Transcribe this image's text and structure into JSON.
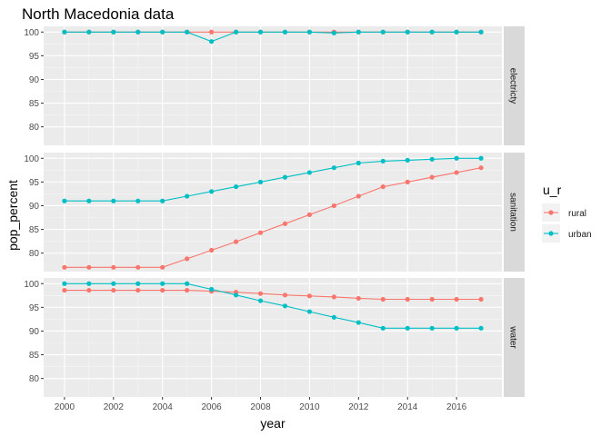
{
  "chart_data": {
    "type": "line",
    "title": "North Macedonia data",
    "xlabel": "year",
    "ylabel": "pop_percent",
    "facet_labels": [
      "electricty",
      "sanitation",
      "water"
    ],
    "x_ticks": [
      2000,
      2002,
      2004,
      2006,
      2008,
      2010,
      2012,
      2014,
      2016
    ],
    "y_ticks": [
      80,
      85,
      90,
      95,
      100
    ],
    "xlim": [
      1999.15,
      2017.85
    ],
    "ylim": [
      76.1,
      101.2
    ],
    "grid": true,
    "legend_title": "u_r",
    "legend_position": "right",
    "x": [
      2000,
      2001,
      2002,
      2003,
      2004,
      2005,
      2006,
      2007,
      2008,
      2009,
      2010,
      2011,
      2012,
      2013,
      2014,
      2015,
      2016,
      2017
    ],
    "series": [
      {
        "name": "rural",
        "color": "#F8766D"
      },
      {
        "name": "urban",
        "color": "#00BFC4"
      }
    ],
    "panels": [
      {
        "facet": "electricty",
        "rural": [
          100,
          100,
          100,
          100,
          100,
          100,
          100,
          100,
          100,
          100,
          100,
          100,
          100,
          100,
          100,
          100,
          100,
          100
        ],
        "urban": [
          100,
          100,
          100,
          100,
          100,
          100,
          98,
          100,
          100,
          100,
          100,
          99.8,
          100,
          100,
          100,
          100,
          100,
          100
        ]
      },
      {
        "facet": "sanitation",
        "rural": [
          77,
          77,
          77,
          77,
          77,
          78.8,
          80.6,
          82.4,
          84.3,
          86.2,
          88.1,
          90,
          92,
          94,
          95,
          96,
          97,
          98
        ],
        "urban": [
          91,
          91,
          91,
          91,
          91,
          92,
          93,
          94,
          95,
          96,
          97,
          98,
          99,
          99.4,
          99.6,
          99.8,
          100,
          100
        ]
      },
      {
        "facet": "water",
        "rural": [
          98.6,
          98.6,
          98.6,
          98.6,
          98.6,
          98.6,
          98.4,
          98.2,
          97.9,
          97.6,
          97.4,
          97.2,
          96.9,
          96.7,
          96.7,
          96.7,
          96.7,
          96.7
        ],
        "urban": [
          100,
          100,
          100,
          100,
          100,
          100,
          98.8,
          97.6,
          96.4,
          95.3,
          94.1,
          92.9,
          91.8,
          90.6,
          90.6,
          90.6,
          90.6,
          90.6
        ]
      }
    ]
  }
}
